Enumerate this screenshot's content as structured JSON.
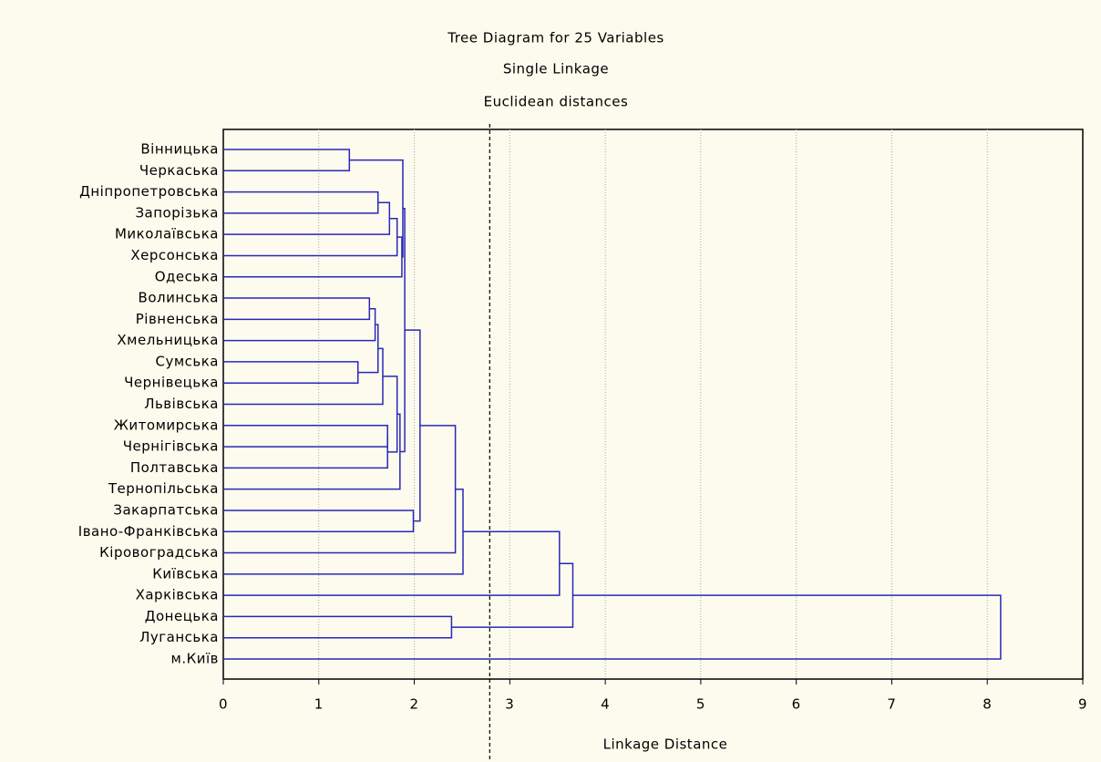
{
  "chart_data": {
    "type": "dendrogram",
    "title": "Tree Diagram for 25  Variables",
    "subtitle": "Single Linkage",
    "subtitle2": "Euclidean distances",
    "x_label": "Linkage Distance",
    "color": "#2828b8",
    "grid": true,
    "leaves": [
      "Вінницька",
      "Черкаська",
      "Дніпропетровська",
      "Запорізька",
      "Миколаївська",
      "Херсонська",
      "Одеська",
      "Волинська",
      "Рівненська",
      "Хмельницька",
      "Сумська",
      "Чернівецька",
      "Львівська",
      "Житомирська",
      "Чернігівська",
      "Полтавська",
      "Тернопільська",
      "Закарпатська",
      "Івано-Франківська",
      "Кіровоградська",
      "Київська",
      "Харківська",
      "Донецька",
      "Луганська",
      "м.Київ"
    ],
    "merges": [
      {
        "join": [
          0,
          1
        ],
        "distance": 1.32
      },
      {
        "join": [
          2,
          3
        ],
        "distance": 1.62
      },
      {
        "join": [
          26,
          4
        ],
        "distance": 1.74
      },
      {
        "join": [
          27,
          5
        ],
        "distance": 1.82
      },
      {
        "join": [
          28,
          6
        ],
        "distance": 1.87
      },
      {
        "join": [
          25,
          29
        ],
        "distance": 1.88
      },
      {
        "join": [
          7,
          8
        ],
        "distance": 1.53
      },
      {
        "join": [
          31,
          9
        ],
        "distance": 1.59
      },
      {
        "join": [
          10,
          11
        ],
        "distance": 1.41
      },
      {
        "join": [
          32,
          33
        ],
        "distance": 1.62
      },
      {
        "join": [
          34,
          12
        ],
        "distance": 1.67
      },
      {
        "join": [
          13,
          14
        ],
        "distance": 1.72
      },
      {
        "join": [
          36,
          15
        ],
        "distance": 1.72
      },
      {
        "join": [
          35,
          37
        ],
        "distance": 1.82
      },
      {
        "join": [
          38,
          16
        ],
        "distance": 1.85
      },
      {
        "join": [
          30,
          39
        ],
        "distance": 1.9
      },
      {
        "join": [
          17,
          18
        ],
        "distance": 1.99
      },
      {
        "join": [
          40,
          41
        ],
        "distance": 2.06
      },
      {
        "join": [
          42,
          19
        ],
        "distance": 2.43
      },
      {
        "join": [
          43,
          20
        ],
        "distance": 2.51
      },
      {
        "join": [
          22,
          23
        ],
        "distance": 2.39
      },
      {
        "join": [
          44,
          21
        ],
        "distance": 3.52
      },
      {
        "join": [
          46,
          45
        ],
        "distance": 3.66
      },
      {
        "join": [
          47,
          24
        ],
        "distance": 8.14
      }
    ],
    "reference_line": 2.79,
    "xlim": [
      0,
      9
    ],
    "xticks": [
      0,
      1,
      2,
      3,
      4,
      5,
      6,
      7,
      8,
      9
    ]
  }
}
